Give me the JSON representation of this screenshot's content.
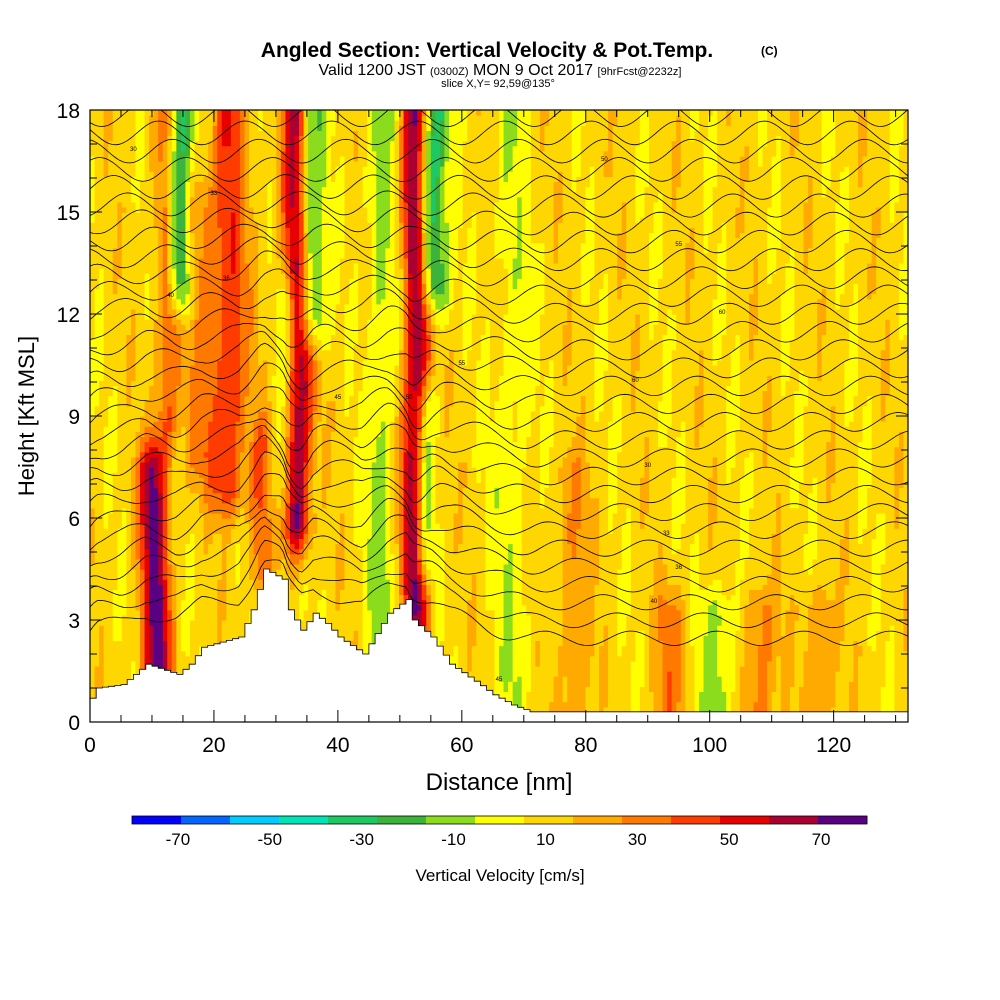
{
  "header": {
    "title": "Angled Section: Vertical Velocity & Pot.Temp.",
    "title_mark": "(C)",
    "valid_time": "Valid 1200 JST",
    "utc_time": "(0300Z)",
    "date": "MON 9 Oct 2017",
    "forecast": "[9hrFcst@2232z]",
    "slice": "slice X,Y= 92,59@135°"
  },
  "chart_data": {
    "type": "heatmap",
    "xlabel": "Distance [nm]",
    "ylabel": "Height [Kft MSL]",
    "xlim": [
      0,
      132
    ],
    "ylim": [
      0,
      18
    ],
    "x_ticks": [
      0,
      20,
      40,
      60,
      80,
      100,
      120
    ],
    "y_ticks": [
      0,
      3,
      6,
      9,
      12,
      15,
      18
    ],
    "grid": false,
    "colorbar": {
      "label": "Vertical Velocity [cm/s]",
      "placement": "bottom",
      "tick_labels": [
        -70,
        -50,
        -30,
        -10,
        10,
        30,
        50,
        70
      ],
      "bins": [
        -80,
        -70,
        -60,
        -50,
        -40,
        -30,
        -20,
        -10,
        0,
        10,
        20,
        30,
        40,
        50,
        60,
        70,
        80
      ],
      "colors": [
        "#0000ff",
        "#0066ff",
        "#00ccff",
        "#00e5b8",
        "#1ec862",
        "#3cb43c",
        "#8cdc1e",
        "#ffff00",
        "#ffd700",
        "#ffaa00",
        "#ff7800",
        "#ff3c00",
        "#e60000",
        "#aa0032",
        "#5a0082"
      ]
    },
    "cores": [
      {
        "x": 10.5,
        "w": 1.6,
        "y0": 1.2,
        "y1": 7.2,
        "amp": 58
      },
      {
        "x": 22.5,
        "w": 2.0,
        "y0": 7.0,
        "y1": 18,
        "amp": 34
      },
      {
        "x": 28.5,
        "w": 1.6,
        "y0": 4.5,
        "y1": 8.0,
        "amp": 38
      },
      {
        "x": 33.5,
        "w": 1.6,
        "y0": 6.0,
        "y1": 18,
        "amp": 62
      },
      {
        "x": 52.5,
        "w": 1.4,
        "y0": 3.5,
        "y1": 18,
        "amp": 62
      },
      {
        "x": 12.5,
        "w": 1.4,
        "y0": 9.0,
        "y1": 18,
        "amp": 28
      },
      {
        "x": 18.0,
        "w": 1.8,
        "y0": 8.0,
        "y1": 15,
        "amp": 18
      },
      {
        "x": 78.0,
        "w": 1.8,
        "y0": 0,
        "y1": 7,
        "amp": 16
      },
      {
        "x": 93.5,
        "w": 1.8,
        "y0": 0,
        "y1": 3,
        "amp": 20
      },
      {
        "x": 108.0,
        "w": 1.8,
        "y0": 0,
        "y1": 3,
        "amp": 22
      },
      {
        "x": 117.5,
        "w": 1.8,
        "y0": 0,
        "y1": 3,
        "amp": 18
      }
    ],
    "downdrafts": [
      {
        "x": 14.5,
        "w": 1.4,
        "y0": 13,
        "y1": 18,
        "amp": -45
      },
      {
        "x": 35.5,
        "w": 1.6,
        "y0": 12,
        "y1": 18,
        "amp": -42
      },
      {
        "x": 55.5,
        "w": 1.6,
        "y0": 13,
        "y1": 18,
        "amp": -42
      },
      {
        "x": 47.0,
        "w": 1.6,
        "y0": 0,
        "y1": 18,
        "amp": -18
      },
      {
        "x": 29.5,
        "w": 1.4,
        "y0": 4,
        "y1": 8,
        "amp": -22
      },
      {
        "x": 31.5,
        "w": 1.2,
        "y0": 7,
        "y1": 12,
        "amp": -24
      },
      {
        "x": 54.0,
        "w": 1.2,
        "y0": 5,
        "y1": 9,
        "amp": -30
      },
      {
        "x": 68.0,
        "w": 2.0,
        "y0": 0,
        "y1": 18,
        "amp": -12
      },
      {
        "x": 101.0,
        "w": 2.0,
        "y0": 0,
        "y1": 3,
        "amp": -20
      }
    ],
    "terrain": [
      [
        0,
        0.7
      ],
      [
        1,
        1.0
      ],
      [
        5,
        1.1
      ],
      [
        7,
        1.4
      ],
      [
        9,
        1.7
      ],
      [
        14,
        1.4
      ],
      [
        16,
        1.7
      ],
      [
        18,
        2.2
      ],
      [
        24,
        2.5
      ],
      [
        26,
        3.3
      ],
      [
        28,
        4.5
      ],
      [
        31,
        4.2
      ],
      [
        32,
        3.3
      ],
      [
        34,
        2.7
      ],
      [
        36,
        3.2
      ],
      [
        38,
        2.9
      ],
      [
        40,
        2.5
      ],
      [
        44,
        2.0
      ],
      [
        46,
        2.6
      ],
      [
        48,
        3.2
      ],
      [
        51,
        3.6
      ],
      [
        52,
        3.0
      ],
      [
        55,
        2.5
      ],
      [
        58,
        1.7
      ],
      [
        62,
        1.2
      ],
      [
        65,
        0.8
      ],
      [
        68,
        0.5
      ],
      [
        71,
        0.3
      ],
      [
        73,
        0.3
      ],
      [
        132,
        0.3
      ]
    ],
    "isentropes": {
      "count": 31,
      "bottom_height": 2.3,
      "top_height": 18.4,
      "labels": [
        "30",
        "33",
        "36",
        "40",
        "45",
        "50",
        "55",
        "60"
      ]
    }
  }
}
